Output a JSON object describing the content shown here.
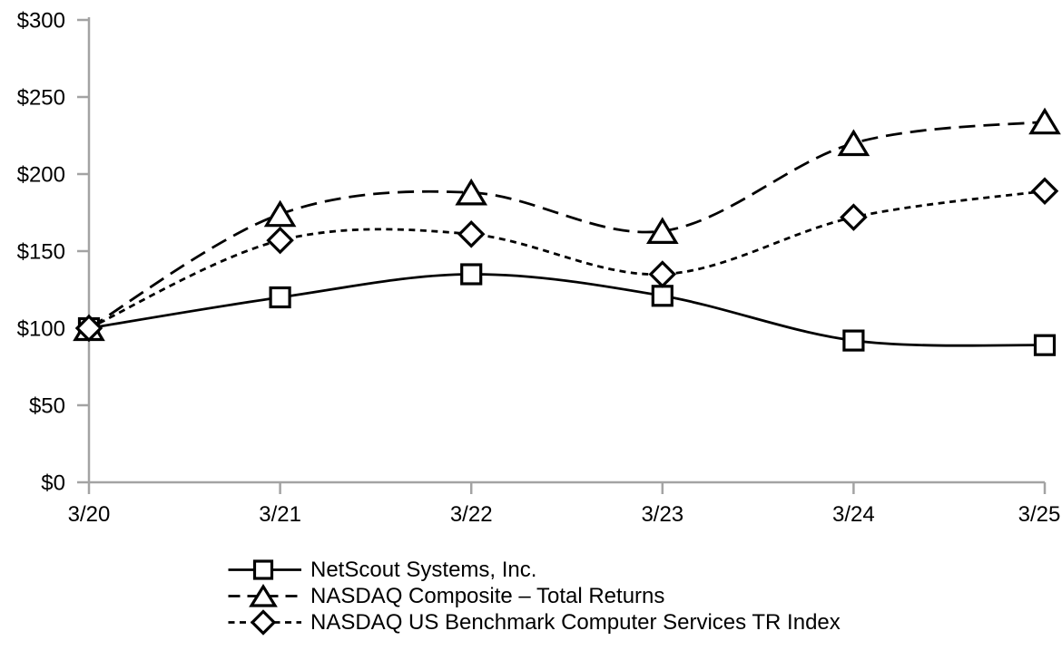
{
  "page": {
    "background": "#ffffff"
  },
  "chart_data": {
    "type": "line",
    "title": "",
    "description": "Cumulative total return comparison, smoothed line chart with open markers, value of $100 investment",
    "x_categories": [
      "3/20",
      "3/21",
      "3/22",
      "3/23",
      "3/24",
      "3/25"
    ],
    "y_axis": {
      "min": 0,
      "max": 300,
      "tick_step": 50,
      "tick_labels": [
        "$0",
        "$50",
        "$100",
        "$150",
        "$200",
        "$250",
        "$300"
      ]
    },
    "grid": false,
    "smoothed_lines": true,
    "legend_position": "bottom-left",
    "colors": {
      "line": "#000000",
      "axis": "#a3a3a3",
      "text": "#000000",
      "marker_fill": "#ffffff",
      "background": "#ffffff"
    },
    "series": [
      {
        "name": "NetScout Systems, Inc.",
        "marker": "square",
        "line_style": "solid",
        "values": [
          100,
          120,
          135,
          121,
          92,
          89
        ]
      },
      {
        "name": "NASDAQ Composite – Total Returns",
        "marker": "triangle",
        "line_style": "long-dash",
        "values": [
          100,
          174,
          188,
          163,
          220,
          234
        ]
      },
      {
        "name": "NASDAQ US Benchmark Computer Services TR Index",
        "marker": "diamond",
        "line_style": "short-dash",
        "values": [
          100,
          157,
          161,
          135,
          172,
          189
        ]
      }
    ]
  }
}
